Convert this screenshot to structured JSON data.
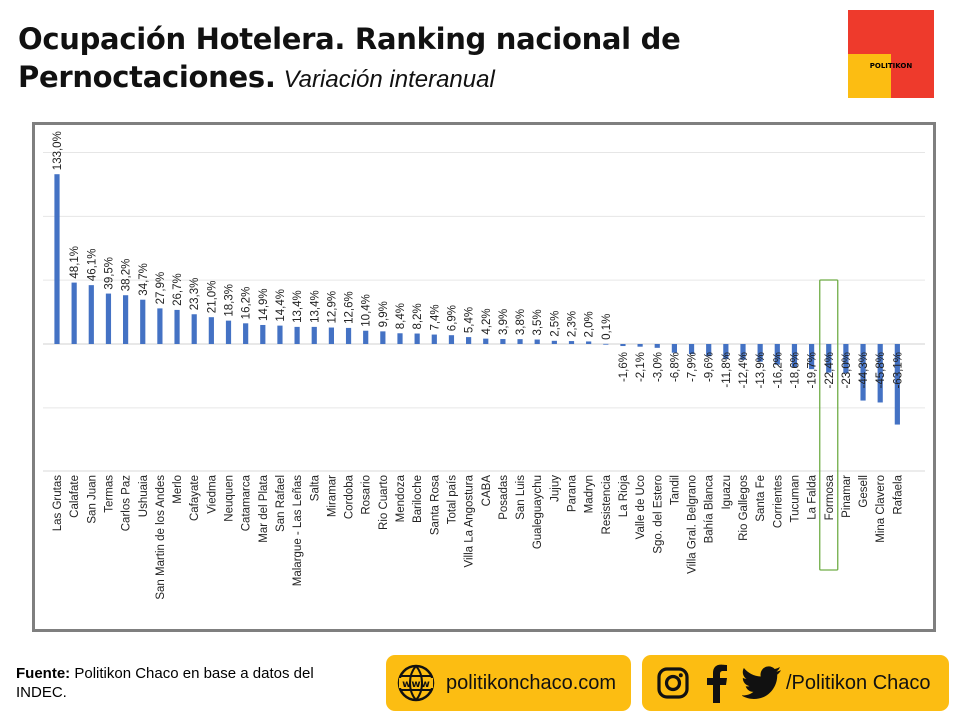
{
  "header": {
    "title_line1": "Ocupación Hotelera. Ranking nacional de",
    "title_line2": "Pernoctaciones.",
    "subtitle": "Variación interanual"
  },
  "logo": {
    "text": "POLITIKON",
    "colors": {
      "red": "#ee3a2c",
      "yellow": "#fcbd12"
    }
  },
  "chart_data": {
    "type": "bar",
    "orientation": "vertical",
    "title": "",
    "xlabel": "",
    "ylabel": "",
    "bar_color": "#4472c4",
    "highlight_color": "#70ad47",
    "highlighted_category": "Formosa",
    "grid": true,
    "ylim": [
      -100,
      150
    ],
    "categories": [
      "Las Grutas",
      "Calafate",
      "San Juan",
      "Termas",
      "Carlos Paz",
      "Ushuaia",
      "San Martin de los Andes",
      "Merlo",
      "Cafayate",
      "Viedma",
      "Neuquen",
      "Catamarca",
      "Mar del Plata",
      "San Rafael",
      "Malargue - Las Leñas",
      "Salta",
      "Miramar",
      "Cordoba",
      "Rosario",
      "Rio Cuarto",
      "Mendoza",
      "Bariloche",
      "Santa Rosa",
      "Total país",
      "Villa La Angostura",
      "CABA",
      "Posadas",
      "San Luis",
      "Gualeguaychu",
      "Jujuy",
      "Parana",
      "Madryn",
      "Resistencia",
      "La Rioja",
      "Valle de Uco",
      "Sgo. del Estero",
      "Tandil",
      "Villa Gral. Belgrano",
      "Bahía Blanca",
      "Iguazu",
      "Rio Gallegos",
      "Santa Fe",
      "Corrientes",
      "Tucuman",
      "La Falda",
      "Formosa",
      "Pinamar",
      "Gesell",
      "Mina Clavero",
      "Rafaela"
    ],
    "values": [
      133.0,
      48.1,
      46.1,
      39.5,
      38.2,
      34.7,
      27.9,
      26.7,
      23.3,
      21.0,
      18.3,
      16.2,
      14.9,
      14.4,
      13.4,
      13.4,
      12.9,
      12.6,
      10.4,
      9.9,
      8.4,
      8.2,
      7.4,
      6.9,
      5.4,
      4.2,
      3.9,
      3.8,
      3.5,
      2.5,
      2.3,
      2.0,
      0.1,
      -1.6,
      -2.1,
      -3.0,
      -6.8,
      -7.9,
      -9.6,
      -11.8,
      -12.4,
      -13.9,
      -16.2,
      -18.6,
      -19.7,
      -22.4,
      -23.0,
      -44.3,
      -45.8,
      -63.1
    ],
    "value_labels": [
      "133,0%",
      "48,1%",
      "46,1%",
      "39,5%",
      "38,2%",
      "34,7%",
      "27,9%",
      "26,7%",
      "23,3%",
      "21,0%",
      "18,3%",
      "16,2%",
      "14,9%",
      "14,4%",
      "13,4%",
      "13,4%",
      "12,9%",
      "12,6%",
      "10,4%",
      "9,9%",
      "8,4%",
      "8,2%",
      "7,4%",
      "6,9%",
      "5,4%",
      "4,2%",
      "3,9%",
      "3,8%",
      "3,5%",
      "2,5%",
      "2,3%",
      "2,0%",
      "0,1%",
      "-1,6%",
      "-2,1%",
      "-3,0%",
      "-6,8%",
      "-7,9%",
      "-9,6%",
      "-11,8%",
      "-12,4%",
      "-13,9%",
      "-16,2%",
      "-18,6%",
      "-19,7%",
      "-22,4%",
      "-23,0%",
      "-44,3%",
      "-45,8%",
      "-63,1%"
    ]
  },
  "footer": {
    "source_label": "Fuente:",
    "source_text": "Politikon Chaco en base a datos del INDEC.",
    "website": "politikonchaco.com",
    "web_icon_text": "www",
    "social_handle": "/Politikon Chaco",
    "icons": [
      "globe-icon",
      "instagram-icon",
      "facebook-icon",
      "twitter-icon"
    ]
  }
}
